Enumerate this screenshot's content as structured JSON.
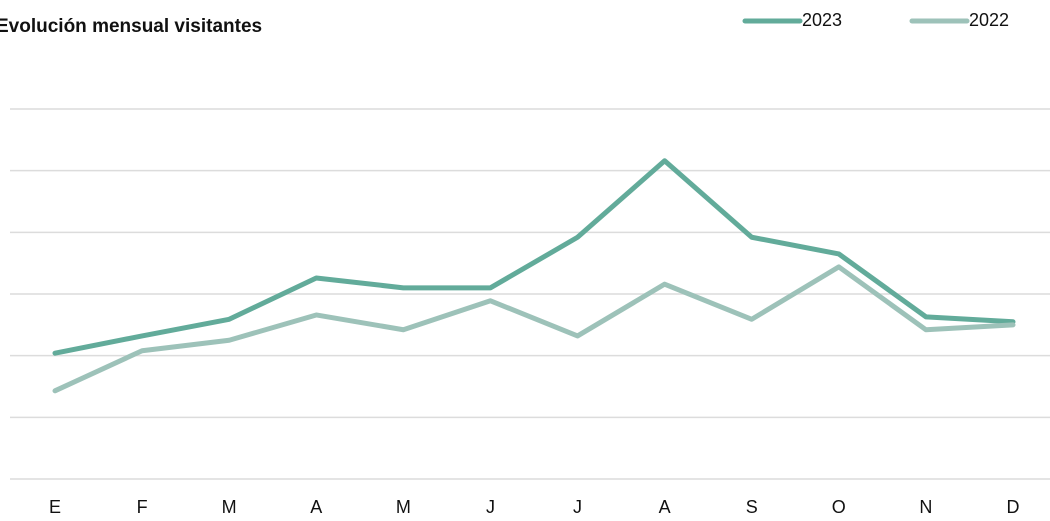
{
  "chart_data": {
    "type": "line",
    "title": "Evolución mensual visitantes",
    "categories": [
      "E",
      "F",
      "M",
      "A",
      "M",
      "J",
      "J",
      "A",
      "S",
      "O",
      "N",
      "D"
    ],
    "series": [
      {
        "name": "2023",
        "color": "#62ab9a",
        "values": [
          2.04,
          2.32,
          2.59,
          3.26,
          3.1,
          3.1,
          3.92,
          5.16,
          3.92,
          3.65,
          2.63,
          2.55
        ]
      },
      {
        "name": "2022",
        "color": "#9dc2b9",
        "values": [
          1.43,
          2.08,
          2.25,
          2.66,
          2.42,
          2.89,
          2.32,
          3.16,
          2.59,
          3.44,
          2.42,
          2.5
        ]
      }
    ],
    "ylim": [
      0,
      6
    ],
    "yticks": [
      0,
      1,
      2,
      3,
      4,
      5,
      6
    ],
    "grid": true,
    "legend": "top-right"
  }
}
